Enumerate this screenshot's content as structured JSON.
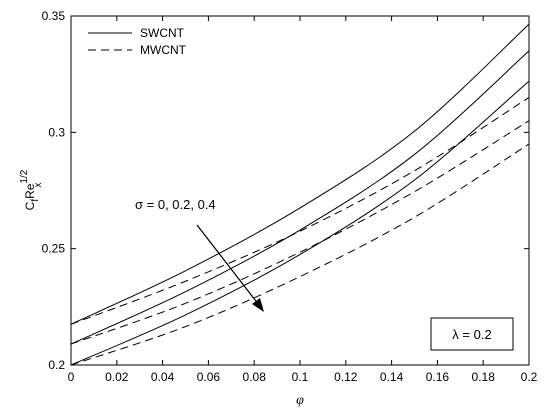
{
  "chart_data": {
    "type": "line",
    "xlabel": "φ",
    "ylabel_main": "C",
    "ylabel_sub1": "f",
    "ylabel_mid": "Re",
    "ylabel_sup": "1/2",
    "ylabel_sub2": "x",
    "xlim": [
      0,
      0.2
    ],
    "ylim": [
      0.2,
      0.35
    ],
    "xticks": [
      0,
      0.02,
      0.04,
      0.06,
      0.08,
      0.1,
      0.12,
      0.14,
      0.16,
      0.18,
      0.2
    ],
    "xtick_labels": [
      "0",
      "0.02",
      "0.04",
      "0.06",
      "0.08",
      "0.1",
      "0.12",
      "0.14",
      "0.16",
      "0.18",
      "0.2"
    ],
    "yticks": [
      0.2,
      0.25,
      0.3,
      0.35
    ],
    "ytick_labels": [
      "0.2",
      "0.25",
      "0.3",
      "0.35"
    ],
    "grid": false,
    "legend_position": "top-left",
    "legend": [
      {
        "label": "SWCNT",
        "style": "solid"
      },
      {
        "label": "MWCNT",
        "style": "dashed"
      }
    ],
    "annotation": "σ = 0, 0.2, 0.4",
    "parameter_box": "λ = 0.2",
    "series": [
      {
        "group": "SWCNT",
        "style": "solid",
        "x": [
          0,
          0.05,
          0.1,
          0.15,
          0.2
        ],
        "y": [
          0.2175,
          0.2405,
          0.2675,
          0.3005,
          0.3465
        ]
      },
      {
        "group": "SWCNT",
        "style": "solid",
        "x": [
          0,
          0.05,
          0.1,
          0.15,
          0.2
        ],
        "y": [
          0.209,
          0.2315,
          0.258,
          0.2905,
          0.335
        ]
      },
      {
        "group": "SWCNT",
        "style": "solid",
        "x": [
          0,
          0.05,
          0.1,
          0.15,
          0.2
        ],
        "y": [
          0.2,
          0.2215,
          0.2475,
          0.2795,
          0.322
        ]
      },
      {
        "group": "MWCNT",
        "style": "dashed",
        "x": [
          0,
          0.05,
          0.1,
          0.15,
          0.2
        ],
        "y": [
          0.2175,
          0.236,
          0.2575,
          0.2835,
          0.315
        ]
      },
      {
        "group": "MWCNT",
        "style": "dashed",
        "x": [
          0,
          0.05,
          0.1,
          0.15,
          0.2
        ],
        "y": [
          0.209,
          0.2265,
          0.2485,
          0.2745,
          0.305
        ]
      },
      {
        "group": "MWCNT",
        "style": "dashed",
        "x": [
          0,
          0.05,
          0.1,
          0.15,
          0.2
        ],
        "y": [
          0.2,
          0.2165,
          0.238,
          0.2635,
          0.295
        ]
      }
    ],
    "line_color": "#000000"
  }
}
